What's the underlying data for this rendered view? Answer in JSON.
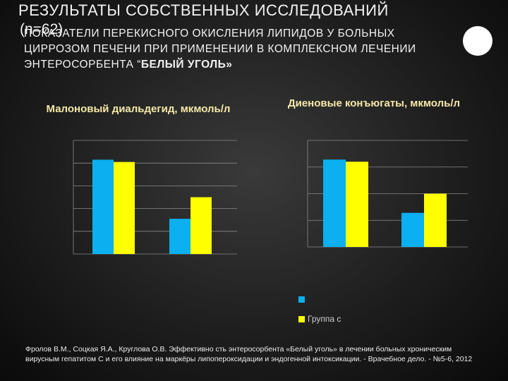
{
  "slide": {
    "title": "РЕЗУЛЬТАТЫ СОБСТВЕННЫХ ИССЛЕДОВАНИЙ",
    "n_note": "(n=62)",
    "subtitle_main": "ПОКАЗАТЕЛИ ПЕРЕКИСНОГО ОКИСЛЕНИЯ ЛИПИДОВ У БОЛЬНЫХ ЦИРРОЗОМ ПЕЧЕНИ ПРИ ПРИМЕНЕНИИ В КОМПЛЕКСНОМ ЛЕЧЕНИИ ЭНТЕРОСОРБЕНТА “",
    "subtitle_bold": "БЕЛЫЙ УГОЛЬ»",
    "footer": "Фролов В.М., Соцкая Я.А., Круглова О.В. Эффективно сть энтеросорбента «Белый уголь» в лечении больных хроническим вирусным гепатитом С и его влияние на маркёры липопероксидации и эндогенной интоксикации. - Врачебное дело. - №5-6, 2012"
  },
  "legend": {
    "items": [
      {
        "label": "",
        "color": "#0ab0f0"
      },
      {
        "label": "Группа с",
        "color": "#ffff00"
      }
    ]
  },
  "chart_data": [
    {
      "type": "bar",
      "title": "Малоновый диальдегид, мкмоль/л",
      "categories": [
        "",
        ""
      ],
      "series": [
        {
          "color": "#0ab0f0",
          "values": [
            8.3,
            3.1
          ]
        },
        {
          "color": "#ffff00",
          "values": [
            8.1,
            5.0
          ]
        }
      ],
      "ylim": [
        0,
        10
      ],
      "grid": true
    },
    {
      "type": "bar",
      "title": "Диеновые конъюгаты, мкмоль/л",
      "categories": [
        "",
        ""
      ],
      "series": [
        {
          "color": "#0ab0f0",
          "values": [
            8.2,
            3.2
          ]
        },
        {
          "color": "#ffff00",
          "values": [
            8.0,
            5.0
          ]
        }
      ],
      "ylim": [
        0,
        10
      ],
      "grid": true
    }
  ]
}
